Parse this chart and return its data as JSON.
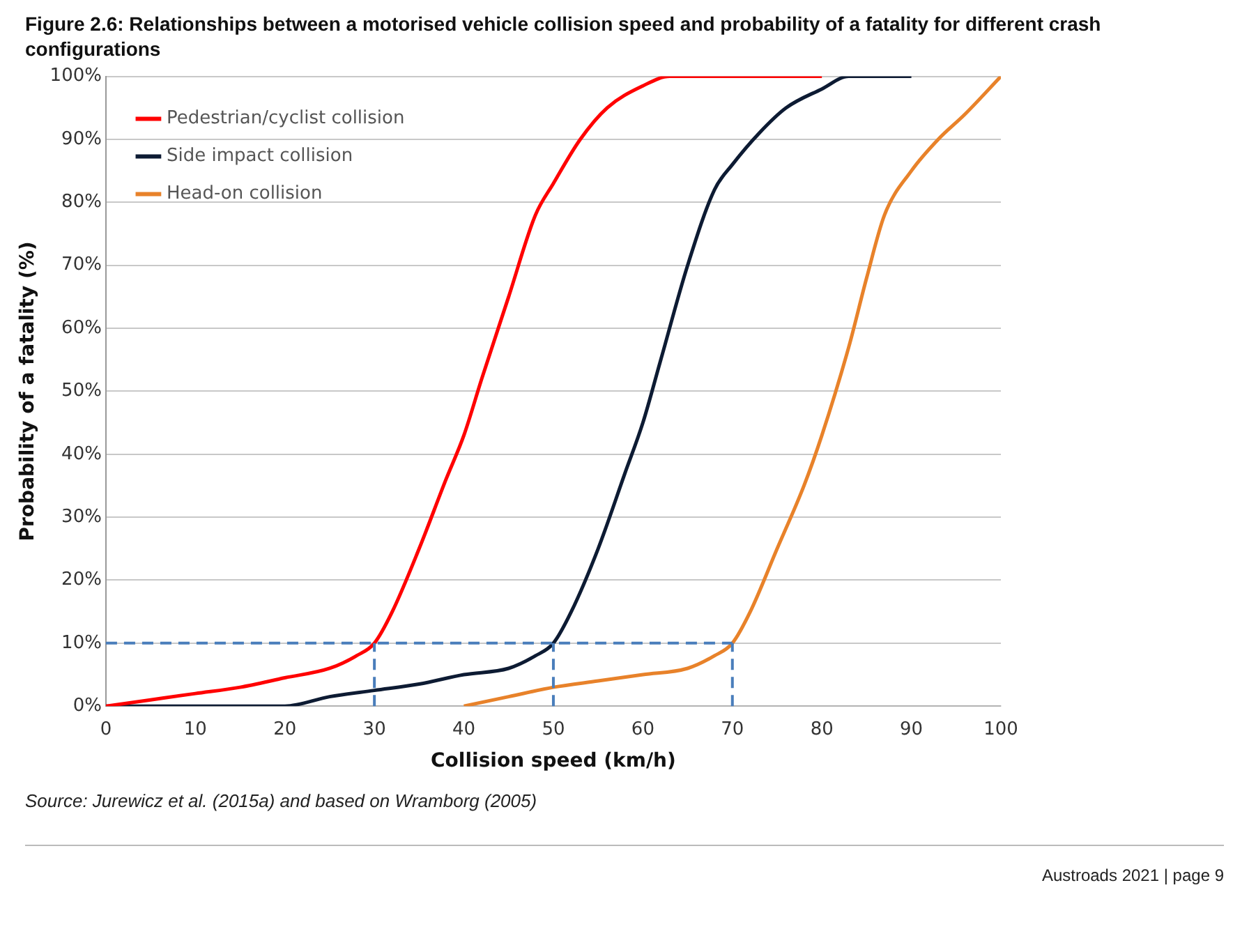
{
  "chart_data": {
    "type": "line",
    "title": "Figure 2.6:    Relationships between a motorised vehicle collision speed and probability of a fatality for different crash configurations",
    "xlabel": "Collision speed (km/h)",
    "ylabel": "Probability of a fatality (%)",
    "xlim": [
      0,
      100
    ],
    "xticks": [
      0,
      10,
      20,
      30,
      40,
      50,
      60,
      70,
      80,
      90,
      100
    ],
    "ylim": [
      0,
      100
    ],
    "yticks": [
      {
        "value": 0,
        "label": "0%"
      },
      {
        "value": 10,
        "label": "10%"
      },
      {
        "value": 20,
        "label": "20%"
      },
      {
        "value": 30,
        "label": "30%"
      },
      {
        "value": 40,
        "label": "40%"
      },
      {
        "value": 50,
        "label": "50%"
      },
      {
        "value": 60,
        "label": "60%"
      },
      {
        "value": 70,
        "label": "70%"
      },
      {
        "value": 80,
        "label": "80%"
      },
      {
        "value": 90,
        "label": "90%"
      },
      {
        "value": 100,
        "label": "100%"
      }
    ],
    "grid": "y",
    "legend": "top left",
    "marker": "none",
    "line_style": "solid",
    "series": [
      {
        "name": "Pedestrian/cyclist collision",
        "color": "#ff0000",
        "x": [
          0,
          5,
          10,
          15,
          20,
          25,
          28,
          30,
          32,
          35,
          38,
          40,
          42,
          45,
          48,
          50,
          53,
          56,
          60,
          63,
          70,
          80
        ],
        "values": [
          0,
          1,
          2,
          3,
          4.5,
          6,
          8,
          10,
          15,
          25,
          36,
          43,
          52,
          65,
          78,
          83,
          90,
          95,
          98.5,
          100,
          100,
          100
        ]
      },
      {
        "name": "Side impact collision",
        "color": "#0d1b33",
        "x": [
          0,
          10,
          20,
          25,
          30,
          35,
          40,
          45,
          48,
          50,
          52,
          55,
          58,
          60,
          62,
          65,
          68,
          70,
          73,
          76,
          80,
          83,
          90
        ],
        "values": [
          0,
          0,
          0,
          1.5,
          2.5,
          3.5,
          5,
          6,
          8,
          10,
          15,
          25,
          37,
          45,
          55,
          70,
          82,
          86,
          91,
          95,
          98,
          100,
          100
        ]
      },
      {
        "name": "Head-on collision",
        "color": "#e8822a",
        "x": [
          40,
          45,
          50,
          55,
          60,
          65,
          68,
          70,
          72,
          75,
          78,
          80,
          83,
          85,
          87,
          90,
          93,
          96,
          100
        ],
        "values": [
          0,
          1.5,
          3,
          4,
          5,
          6,
          8,
          10,
          15,
          25,
          35,
          43,
          57,
          68,
          78,
          85,
          90,
          94,
          100
        ]
      }
    ],
    "ref_lines": [
      {
        "axis": "y",
        "value": 10,
        "color": "#4a7ebb",
        "line_style": "dashed"
      },
      {
        "axis": "x",
        "value": 30,
        "color": "#4a7ebb",
        "line_style": "dashed"
      },
      {
        "axis": "x",
        "value": 50,
        "color": "#4a7ebb",
        "line_style": "dashed"
      },
      {
        "axis": "x",
        "value": 70,
        "color": "#4a7ebb",
        "line_style": "dashed"
      }
    ],
    "annotations": [
      "Source: Jurewicz et al. (2015a) and based on Wramborg (2005)",
      "Austroads 2021 | page 9"
    ]
  }
}
